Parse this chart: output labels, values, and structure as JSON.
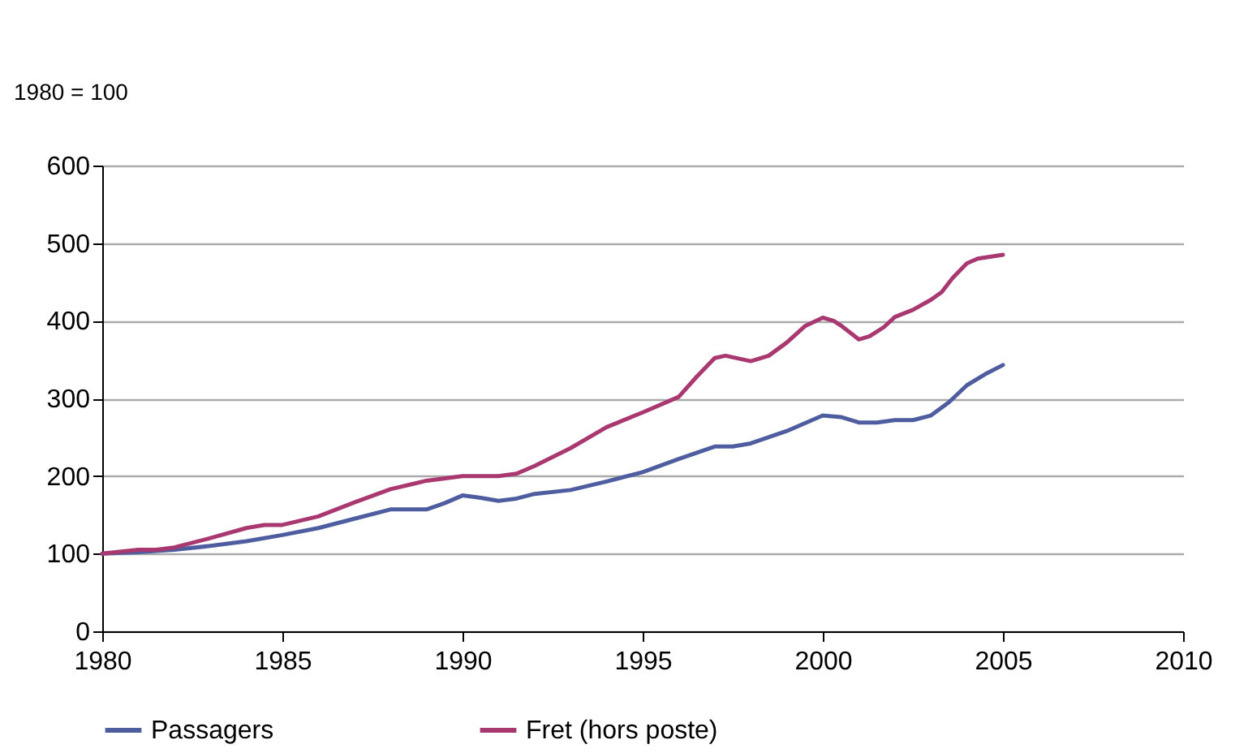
{
  "chart_data": {
    "type": "line",
    "ylabel": "1980 = 100",
    "xlim": [
      1980,
      2010
    ],
    "xticks": [
      1980,
      1985,
      1990,
      1995,
      2000,
      2005,
      2010
    ],
    "ylim": [
      0,
      600
    ],
    "yticks": [
      0,
      100,
      200,
      300,
      400,
      500,
      600
    ],
    "grid": "y",
    "legend": "bottom",
    "marker": "none",
    "line_style": "solid",
    "series": [
      {
        "name": "Passagers",
        "color": "#4e5d9f",
        "x": [
          1980,
          1981,
          1982,
          1983,
          1984,
          1985,
          1986,
          1987,
          1988,
          1989,
          1989.5,
          1990,
          1990.5,
          1991,
          1991.5,
          1992,
          1993,
          1994,
          1995,
          1996,
          1997,
          1997.5,
          1998,
          1999,
          2000,
          2000.5,
          2001,
          2001.5,
          2002,
          2002.5,
          2003,
          2003.5,
          2004,
          2004.5,
          2005
        ],
        "values": [
          100,
          102,
          105,
          110,
          116,
          124,
          133,
          145,
          157,
          157,
          165,
          175,
          172,
          168,
          171,
          177,
          182,
          193,
          205,
          222,
          238,
          238,
          242,
          258,
          278,
          276,
          269,
          269,
          272,
          272,
          278,
          295,
          317,
          331,
          343
        ]
      },
      {
        "name": "Fret (hors poste)",
        "color": "#a8386f",
        "x": [
          1980,
          1981,
          1981.5,
          1982,
          1983,
          1984,
          1984.5,
          1985,
          1986,
          1987,
          1988,
          1989,
          1990,
          1991,
          1991.5,
          1992,
          1993,
          1994,
          1995,
          1996,
          1996.5,
          1997,
          1997.3,
          1998,
          1998.5,
          1999,
          1999.5,
          2000,
          2000.3,
          2000.5,
          2001,
          2001.3,
          2001.7,
          2002,
          2002.5,
          2003,
          2003.3,
          2003.6,
          2004,
          2004.3,
          2005
        ],
        "values": [
          100,
          105,
          105,
          108,
          120,
          133,
          137,
          137,
          148,
          166,
          183,
          194,
          200,
          200,
          203,
          213,
          236,
          263,
          282,
          302,
          328,
          352,
          355,
          348,
          355,
          372,
          393,
          404,
          400,
          394,
          376,
          380,
          392,
          405,
          414,
          427,
          437,
          455,
          474,
          480,
          485
        ]
      }
    ]
  }
}
